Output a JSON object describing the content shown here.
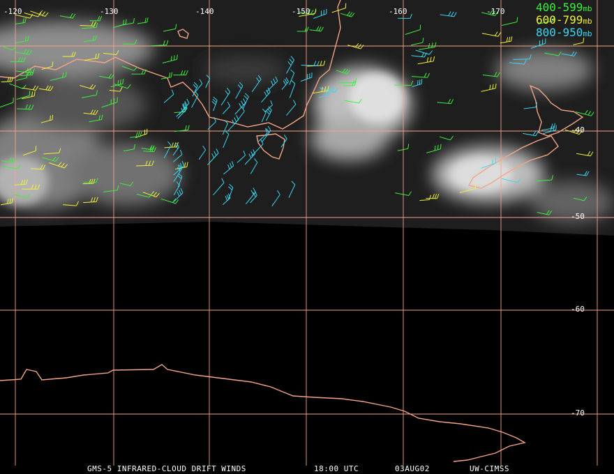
{
  "grid": {
    "lon_labels": [
      "-120",
      "-130",
      "-140",
      "-150",
      "-160",
      "-170"
    ],
    "lat_labels": [
      "-40",
      "-50",
      "-60",
      "-70"
    ],
    "line_color": "#f4a588"
  },
  "legend": [
    {
      "range": "400-599",
      "unit": "mb",
      "color": "#3ef03e"
    },
    {
      "range": "600-799",
      "unit": "mb",
      "color": "#f2f23a"
    },
    {
      "range": "800-950",
      "unit": "mb",
      "color": "#3ad8f2"
    }
  ],
  "caption": {
    "product": "GMS-5 INFRARED-CLOUD DRIFT WINDS",
    "time": "18:00 UTC",
    "date": "03AUG02",
    "source": "UW-CIMSS"
  },
  "colors": {
    "coastline": "#f4a588",
    "background": "#000000",
    "cloud_dark": "#2a2a2a",
    "cloud_bright": "#d8d8d8"
  }
}
